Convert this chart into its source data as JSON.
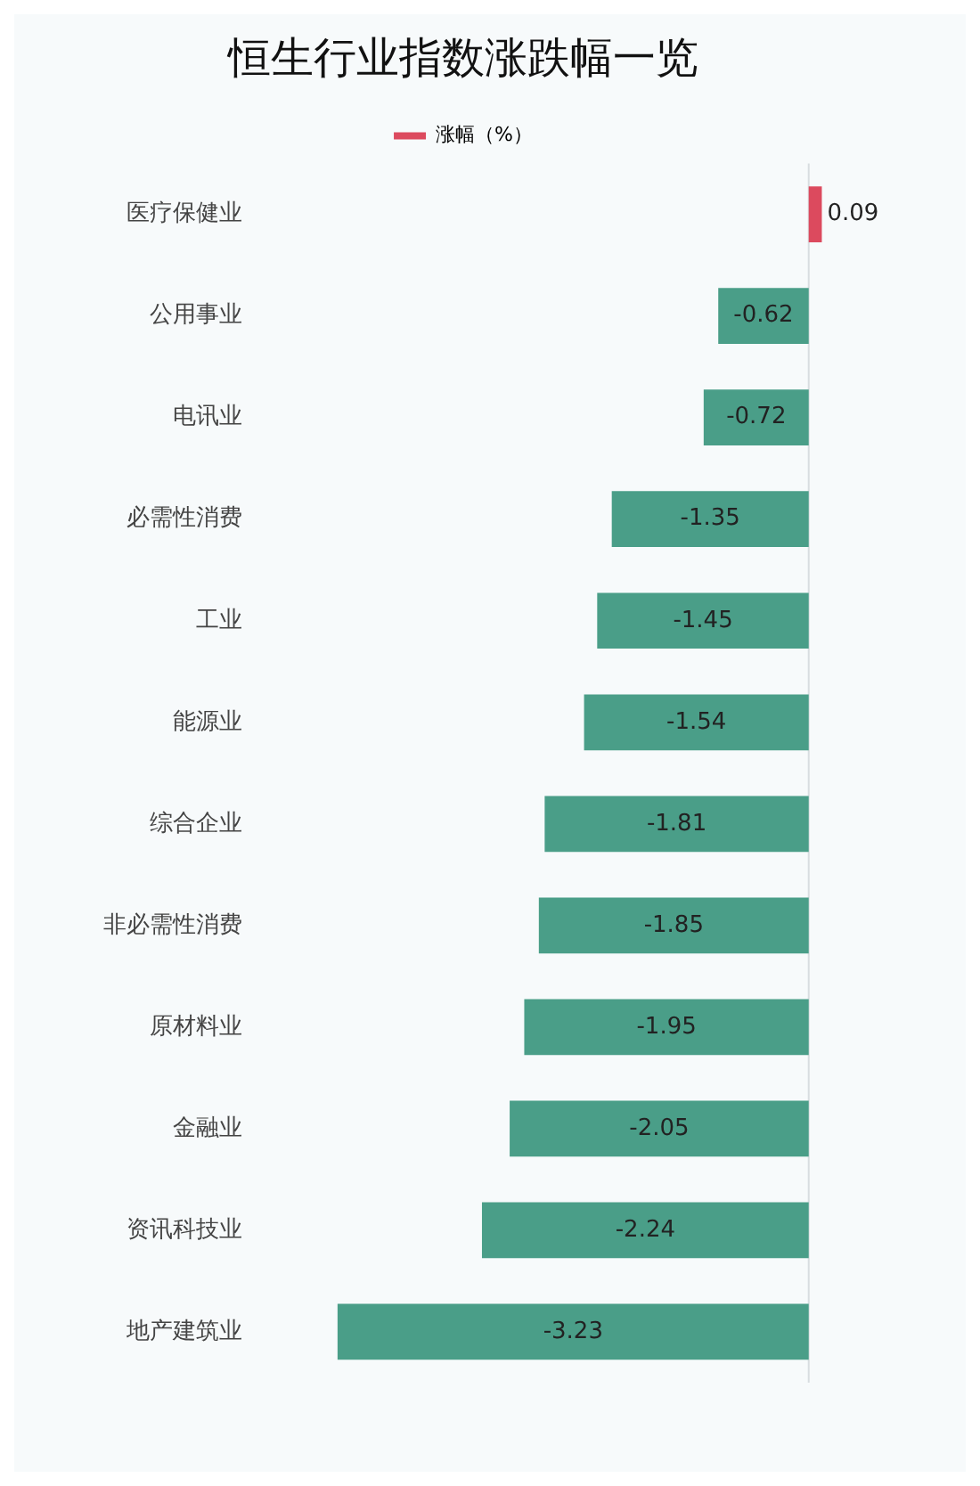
{
  "chart_data": {
    "type": "bar",
    "orientation": "horizontal",
    "title": "恒生行业指数涨跌幅一览",
    "categories": [
      "医疗保健业",
      "公用事业",
      "电讯业",
      "必需性消费",
      "工业",
      "能源业",
      "综合企业",
      "非必需性消费",
      "原材料业",
      "金融业",
      "资讯科技业",
      "地产建筑业"
    ],
    "series": [
      {
        "name": "涨幅（%）",
        "color": "#dc4a5e",
        "colors": [
          "#dc4a5e",
          "#4a9e88",
          "#4a9e88",
          "#4a9e88",
          "#4a9e88",
          "#4a9e88",
          "#4a9e88",
          "#4a9e88",
          "#4a9e88",
          "#4a9e88",
          "#4a9e88",
          "#4a9e88"
        ],
        "values": [
          0.09,
          -0.62,
          -0.72,
          -1.35,
          -1.45,
          -1.54,
          -1.81,
          -1.85,
          -1.95,
          -2.05,
          -2.24,
          -3.23
        ]
      }
    ],
    "data_labels": true,
    "legend": "top"
  }
}
